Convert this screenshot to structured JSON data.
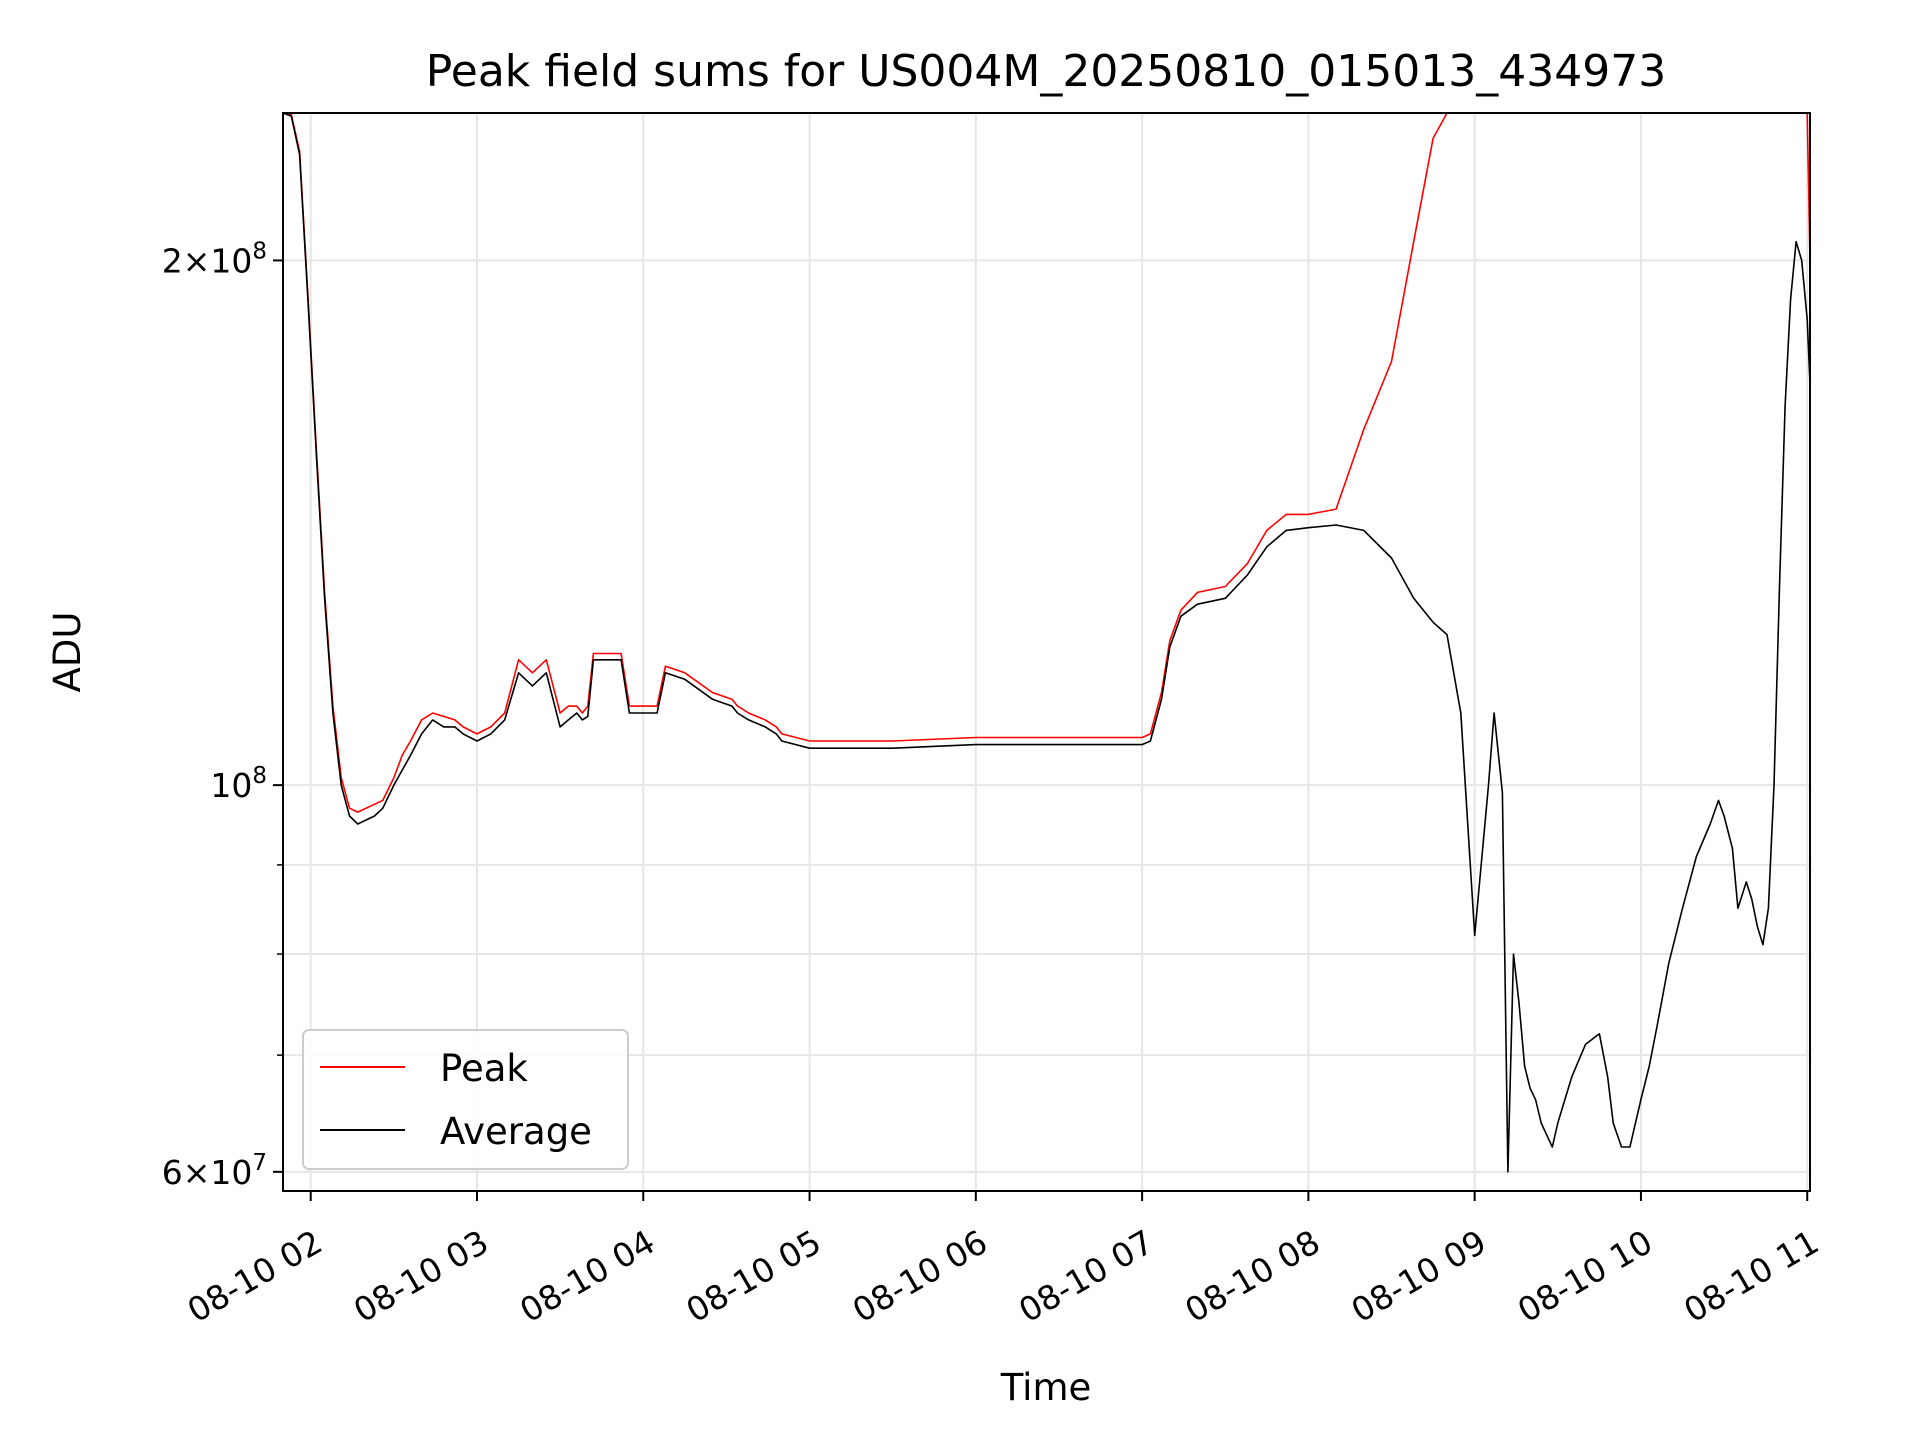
{
  "chart_data": {
    "type": "line",
    "title": "Peak field sums for US004M_20250810_015013_434973",
    "xlabel": "Time",
    "ylabel": "ADU",
    "yscale": "log",
    "grid": true,
    "legend_position": "lower left",
    "xlim": [
      "2025-08-10 01:50",
      "2025-08-10 11:01"
    ],
    "ylim": [
      58500000,
      243000000
    ],
    "x_ticks": [
      "08-10 02",
      "08-10 03",
      "08-10 04",
      "08-10 05",
      "08-10 06",
      "08-10 07",
      "08-10 08",
      "08-10 09",
      "08-10 10",
      "08-10 11"
    ],
    "y_major_ticks": [
      {
        "value": 60000000,
        "label_mantissa": "6",
        "label_base": "10",
        "label_exp": "7"
      },
      {
        "value": 100000000,
        "label_mantissa": "",
        "label_base": "10",
        "label_exp": "8"
      },
      {
        "value": 200000000,
        "label_mantissa": "2",
        "label_base": "10",
        "label_exp": "8"
      }
    ],
    "y_minor_ticks": [
      70000000,
      80000000,
      90000000
    ],
    "colors": {
      "Peak": "#ff0000",
      "Average": "#000000"
    },
    "series": [
      {
        "name": "Average",
        "x": [
          "01:50",
          "01:53",
          "01:56",
          "01:59",
          "02:02",
          "02:05",
          "02:08",
          "02:11",
          "02:14",
          "02:17",
          "02:20",
          "02:23",
          "02:26",
          "02:30",
          "02:33",
          "02:36",
          "02:40",
          "02:44",
          "02:48",
          "02:52",
          "02:55",
          "03:00",
          "03:05",
          "03:10",
          "03:15",
          "03:20",
          "03:25",
          "03:30",
          "03:33",
          "03:36",
          "03:38",
          "03:40",
          "03:42",
          "03:44",
          "03:46",
          "03:48",
          "03:50",
          "03:52",
          "03:55",
          "04:00",
          "04:05",
          "04:08",
          "04:15",
          "04:25",
          "04:32",
          "04:34",
          "04:38",
          "04:44",
          "04:48",
          "04:50",
          "05:00",
          "05:30",
          "06:00",
          "06:30",
          "06:56",
          "07:00",
          "07:03",
          "07:07",
          "07:10",
          "07:14",
          "07:20",
          "07:30",
          "07:38",
          "07:45",
          "07:52",
          "08:00",
          "08:10",
          "08:20",
          "08:30",
          "08:38",
          "08:45",
          "08:50",
          "08:55",
          "09:00",
          "09:05",
          "09:07",
          "09:10",
          "09:12",
          "09:14",
          "09:16",
          "09:18",
          "09:20",
          "09:22",
          "09:24",
          "09:26",
          "09:28",
          "09:30",
          "09:35",
          "09:40",
          "09:45",
          "09:48",
          "09:50",
          "09:53",
          "09:56",
          "10:00",
          "10:03",
          "10:06",
          "10:10",
          "10:15",
          "10:20",
          "10:25",
          "10:28",
          "10:30",
          "10:33",
          "10:35",
          "10:38",
          "10:40",
          "10:42",
          "10:44",
          "10:46",
          "10:48",
          "10:50",
          "10:52",
          "10:54",
          "10:56",
          "10:58",
          "11:00",
          "11:01"
        ],
        "y": [
          243000000,
          242000000,
          230000000,
          190000000,
          155000000,
          128000000,
          110000000,
          100000000,
          96000000,
          95000000,
          95500000,
          96000000,
          97000000,
          100000000,
          102000000,
          104000000,
          107000000,
          109000000,
          108000000,
          108000000,
          107000000,
          106000000,
          107000000,
          109000000,
          116000000,
          114000000,
          116000000,
          108000000,
          109000000,
          110000000,
          109000000,
          109500000,
          118000000,
          118000000,
          118000000,
          118000000,
          118000000,
          118000000,
          110000000,
          110000000,
          110000000,
          116000000,
          115000000,
          112000000,
          111000000,
          110000000,
          109000000,
          108000000,
          107000000,
          106000000,
          105000000,
          105000000,
          105500000,
          105500000,
          105500000,
          105500000,
          106000000,
          112000000,
          120000000,
          125000000,
          127000000,
          128000000,
          132000000,
          137000000,
          140000000,
          140500000,
          141000000,
          140000000,
          135000000,
          128000000,
          124000000,
          122000000,
          110000000,
          82000000,
          100000000,
          110000000,
          99000000,
          60000000,
          80000000,
          75000000,
          69000000,
          67000000,
          66000000,
          64000000,
          63000000,
          62000000,
          64000000,
          68000000,
          71000000,
          72000000,
          68000000,
          64000000,
          62000000,
          62000000,
          66000000,
          69000000,
          73000000,
          79000000,
          85000000,
          91000000,
          95000000,
          98000000,
          96000000,
          92000000,
          85000000,
          88000000,
          86000000,
          83000000,
          81000000,
          85000000,
          100000000,
          130000000,
          165000000,
          190000000,
          205000000,
          200000000,
          185000000,
          170000000
        ]
      },
      {
        "name": "Peak",
        "x": [
          "01:50",
          "01:53",
          "01:56",
          "01:59",
          "02:02",
          "02:05",
          "02:08",
          "02:11",
          "02:14",
          "02:17",
          "02:20",
          "02:23",
          "02:26",
          "02:30",
          "02:33",
          "02:36",
          "02:40",
          "02:44",
          "02:48",
          "02:52",
          "02:55",
          "03:00",
          "03:05",
          "03:10",
          "03:15",
          "03:20",
          "03:25",
          "03:30",
          "03:33",
          "03:36",
          "03:38",
          "03:40",
          "03:42",
          "03:44",
          "03:46",
          "03:48",
          "03:50",
          "03:52",
          "03:55",
          "04:00",
          "04:05",
          "04:08",
          "04:15",
          "04:25",
          "04:32",
          "04:34",
          "04:38",
          "04:44",
          "04:48",
          "04:50",
          "05:00",
          "05:30",
          "06:00",
          "06:30",
          "06:56",
          "07:00",
          "07:03",
          "07:07",
          "07:10",
          "07:14",
          "07:20",
          "07:30",
          "07:38",
          "07:45",
          "07:52",
          "08:00",
          "08:10",
          "08:20",
          "08:30",
          "08:38",
          "08:45",
          "08:50",
          "08:55",
          "09:00",
          "09:05",
          "09:07",
          "09:10",
          "09:12",
          "09:14",
          "09:16",
          "09:18",
          "09:20",
          "09:22",
          "09:24",
          "09:26",
          "09:28",
          "09:30",
          "09:35",
          "09:40",
          "09:45",
          "09:48",
          "09:50",
          "09:53",
          "09:56",
          "10:00",
          "10:03",
          "10:06",
          "10:10",
          "10:15",
          "10:20",
          "10:25",
          "10:28",
          "10:30",
          "10:33",
          "10:35",
          "10:38",
          "10:40",
          "10:42",
          "10:44",
          "10:46",
          "10:48",
          "10:50",
          "10:52",
          "10:54",
          "10:56",
          "10:58",
          "11:00",
          "11:01"
        ],
        "y": [
          243000000,
          242500000,
          231000000,
          191000000,
          156000000,
          129000000,
          111000000,
          101000000,
          97000000,
          96500000,
          97000000,
          97500000,
          98000000,
          101000000,
          104000000,
          106000000,
          109000000,
          110000000,
          109500000,
          109000000,
          108000000,
          107000000,
          108000000,
          110000000,
          118000000,
          116000000,
          118000000,
          110000000,
          111000000,
          111000000,
          110000000,
          111000000,
          119000000,
          119000000,
          119000000,
          119000000,
          119000000,
          119000000,
          111000000,
          111000000,
          111000000,
          117000000,
          116000000,
          113000000,
          112000000,
          111000000,
          110000000,
          109000000,
          108000000,
          107000000,
          106000000,
          106000000,
          106500000,
          106500000,
          106500000,
          106500000,
          107000000,
          113000000,
          121000000,
          126000000,
          129000000,
          130000000,
          134000000,
          140000000,
          143000000,
          143000000,
          144000000,
          160000000,
          175000000,
          205000000,
          235000000,
          243000000,
          243000000,
          243000000,
          243000000,
          243000000,
          243000000,
          243000000,
          243000000,
          243000000,
          243000000,
          243000000,
          243000000,
          243000000,
          243000000,
          243000000,
          243000000,
          243000000,
          243000000,
          243000000,
          243000000,
          243000000,
          243000000,
          243000000,
          243000000,
          243000000,
          243000000,
          243000000,
          243000000,
          243000000,
          243000000,
          243000000,
          243000000,
          243000000,
          243000000,
          243000000,
          243000000,
          243000000,
          243000000,
          243000000,
          243000000,
          243000000,
          243000000,
          243000000,
          243000000,
          243000000,
          243000000,
          200000000
        ]
      }
    ]
  }
}
